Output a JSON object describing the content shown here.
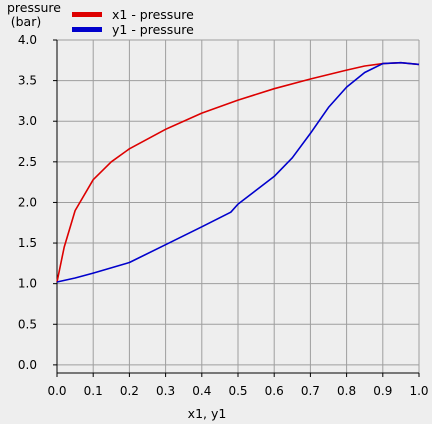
{
  "chart_data": {
    "type": "line",
    "xlabel": "x1, y1",
    "ylabel_line1": "pressure",
    "ylabel_line2": "(bar)",
    "xlim": [
      0.0,
      1.0
    ],
    "ylim": [
      -0.1,
      4.0
    ],
    "grid": true,
    "legend_position": "top-left",
    "x_ticks": [
      "0.0",
      "0.1",
      "0.2",
      "0.3",
      "0.4",
      "0.5",
      "0.6",
      "0.7",
      "0.8",
      "0.9",
      "1.0"
    ],
    "y_ticks": [
      "0.0",
      "0.5",
      "1.0",
      "1.5",
      "2.0",
      "2.5",
      "3.0",
      "3.5",
      "4.0"
    ],
    "series": [
      {
        "name": "x1 - pressure",
        "color": "#dd0000",
        "x": [
          0.0,
          0.02,
          0.05,
          0.1,
          0.15,
          0.2,
          0.3,
          0.4,
          0.5,
          0.6,
          0.7,
          0.8,
          0.85,
          0.9,
          0.95,
          1.0
        ],
        "y": [
          1.02,
          1.45,
          1.9,
          2.28,
          2.5,
          2.66,
          2.9,
          3.1,
          3.26,
          3.4,
          3.52,
          3.63,
          3.68,
          3.71,
          3.72,
          3.7
        ]
      },
      {
        "name": "y1 - pressure",
        "color": "#0000cc",
        "x": [
          0.0,
          0.05,
          0.1,
          0.2,
          0.3,
          0.4,
          0.48,
          0.5,
          0.6,
          0.65,
          0.7,
          0.75,
          0.8,
          0.85,
          0.9,
          0.95,
          1.0
        ],
        "y": [
          1.02,
          1.07,
          1.13,
          1.26,
          1.48,
          1.7,
          1.88,
          1.98,
          2.32,
          2.55,
          2.85,
          3.17,
          3.42,
          3.6,
          3.71,
          3.72,
          3.7
        ]
      }
    ]
  }
}
